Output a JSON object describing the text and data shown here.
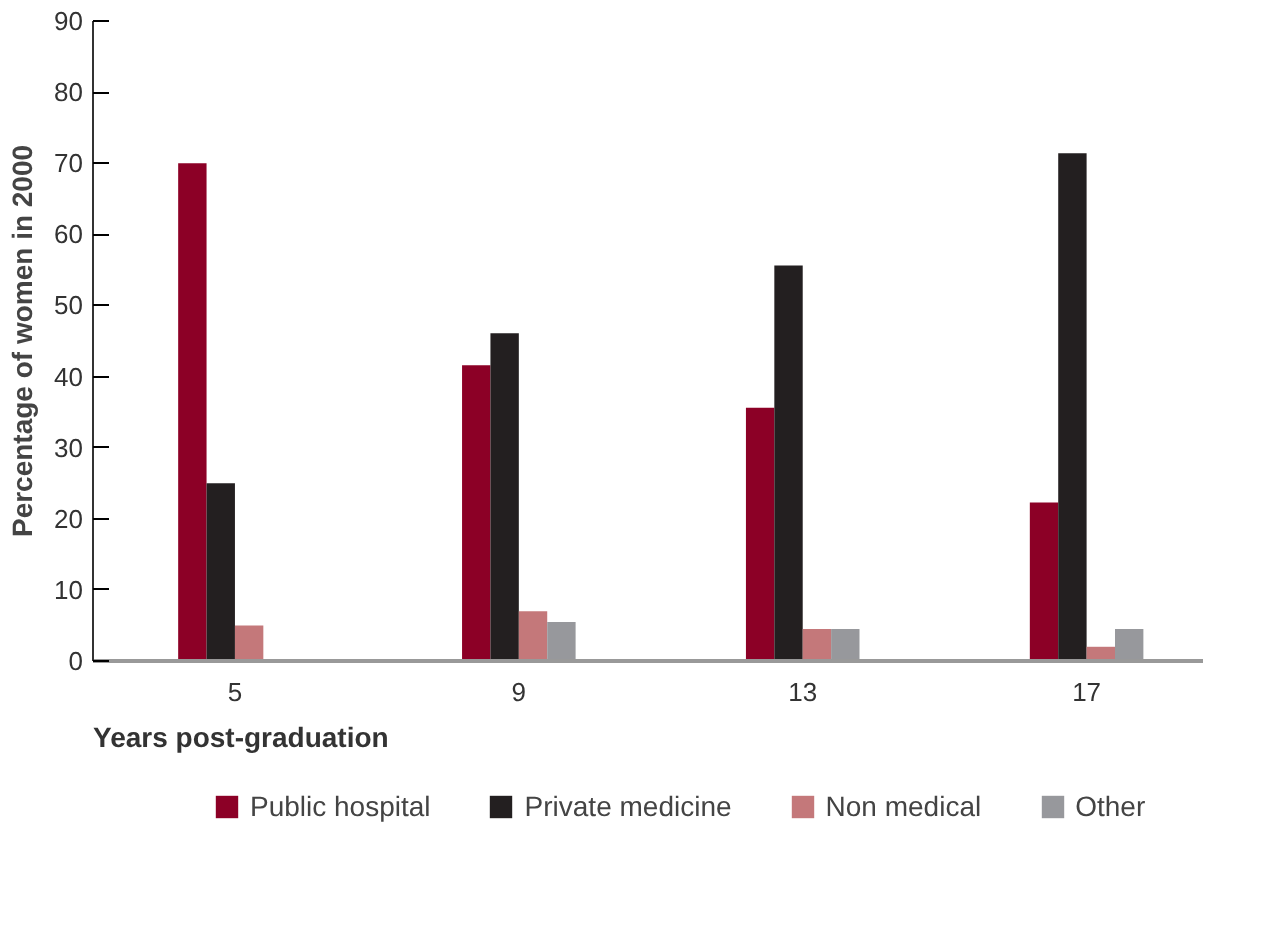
{
  "chart_data": {
    "type": "bar",
    "xlabel": "Years post-graduation",
    "ylabel": "Percentage of women in 2000",
    "categories": [
      "5",
      "9",
      "13",
      "17"
    ],
    "series": [
      {
        "name": "Public hospital",
        "color": "#8c0026",
        "values": [
          70,
          41.6,
          35.6,
          22.3
        ]
      },
      {
        "name": "Private medicine",
        "color": "#231f20",
        "values": [
          25,
          46.1,
          55.6,
          71.4
        ]
      },
      {
        "name": "Non medical",
        "color": "#c4787a",
        "values": [
          5,
          7,
          4.5,
          2
        ]
      },
      {
        "name": "Other",
        "color": "#97989c",
        "values": [
          0,
          5.5,
          4.5,
          4.5
        ]
      }
    ],
    "ylim": [
      0,
      90
    ],
    "yticks": [
      0,
      10,
      20,
      30,
      40,
      50,
      60,
      70,
      80,
      90
    ],
    "grid": false,
    "legend": "bottom"
  }
}
